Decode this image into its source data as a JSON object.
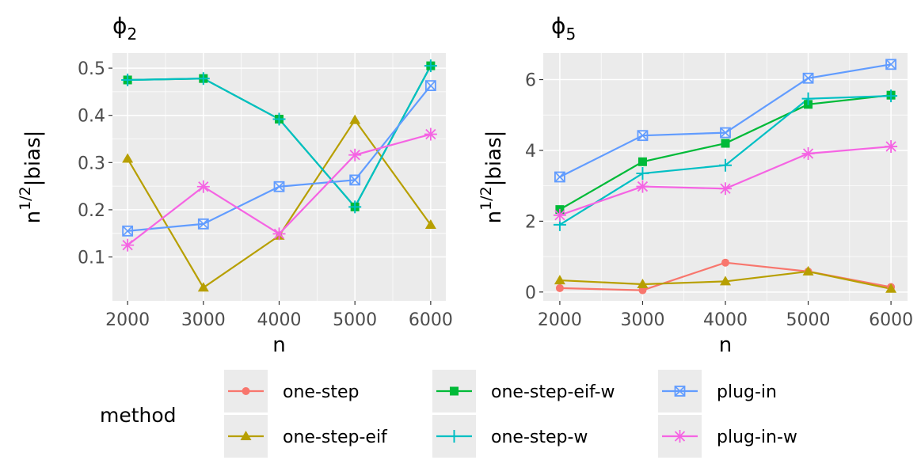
{
  "chart_data": [
    {
      "type": "line",
      "title": "ϕ",
      "title_subscript": "2",
      "xlabel": "n",
      "ylabel": "n",
      "ylabel_superscript": "1/2",
      "ylabel_suffix": "|bias|",
      "x": [
        2000,
        3000,
        4000,
        5000,
        6000
      ],
      "xticks": [
        "2000",
        "3000",
        "4000",
        "5000",
        "6000"
      ],
      "xlim": [
        1800,
        6200
      ],
      "ylim": [
        0.007,
        0.532
      ],
      "yticks": [
        0.1,
        0.2,
        0.3,
        0.4,
        0.5
      ],
      "ytick_labels": [
        "0.1",
        "0.2",
        "0.3",
        "0.4",
        "0.5"
      ],
      "series": [
        {
          "name": "one-step-eif",
          "values": [
            0.308,
            0.035,
            0.145,
            0.39,
            0.168
          ]
        },
        {
          "name": "one-step-eif-w",
          "values": [
            0.475,
            0.478,
            0.392,
            0.206,
            0.505
          ]
        },
        {
          "name": "one-step-w",
          "values": [
            0.475,
            0.478,
            0.392,
            0.206,
            0.505
          ]
        },
        {
          "name": "plug-in",
          "values": [
            0.155,
            0.17,
            0.249,
            0.263,
            0.463
          ]
        },
        {
          "name": "plug-in-w",
          "values": [
            0.125,
            0.249,
            0.149,
            0.316,
            0.36
          ]
        }
      ]
    },
    {
      "type": "line",
      "title": "ϕ",
      "title_subscript": "5",
      "xlabel": "n",
      "ylabel": "n",
      "ylabel_superscript": "1/2",
      "ylabel_suffix": "|bias|",
      "x": [
        2000,
        3000,
        4000,
        5000,
        6000
      ],
      "xticks": [
        "2000",
        "3000",
        "4000",
        "5000",
        "6000"
      ],
      "xlim": [
        1800,
        6200
      ],
      "ylim": [
        -0.25,
        6.75
      ],
      "yticks": [
        0,
        2,
        4,
        6
      ],
      "ytick_labels": [
        "0",
        "2",
        "4",
        "6"
      ],
      "series": [
        {
          "name": "one-step",
          "values": [
            0.11,
            0.05,
            0.83,
            0.58,
            0.14
          ]
        },
        {
          "name": "one-step-eif",
          "values": [
            0.33,
            0.22,
            0.3,
            0.58,
            0.09
          ]
        },
        {
          "name": "one-step-eif-w",
          "values": [
            2.33,
            3.68,
            4.2,
            5.3,
            5.56
          ]
        },
        {
          "name": "one-step-w",
          "values": [
            1.9,
            3.35,
            3.58,
            5.46,
            5.54
          ]
        },
        {
          "name": "plug-in",
          "values": [
            3.25,
            4.42,
            4.5,
            6.04,
            6.43
          ]
        },
        {
          "name": "plug-in-w",
          "values": [
            2.17,
            2.98,
            2.92,
            3.91,
            4.11
          ]
        }
      ]
    }
  ],
  "legend": {
    "title": "method",
    "items": [
      {
        "name": "one-step",
        "color": "#F8766D",
        "marker": "circle"
      },
      {
        "name": "one-step-eif",
        "color": "#B79F00",
        "marker": "triangle"
      },
      {
        "name": "one-step-eif-w",
        "color": "#00BA38",
        "marker": "square"
      },
      {
        "name": "one-step-w",
        "color": "#00BFC4",
        "marker": "plus"
      },
      {
        "name": "plug-in",
        "color": "#619CFF",
        "marker": "boxed-x"
      },
      {
        "name": "plug-in-w",
        "color": "#F564E3",
        "marker": "asterisk"
      }
    ]
  }
}
